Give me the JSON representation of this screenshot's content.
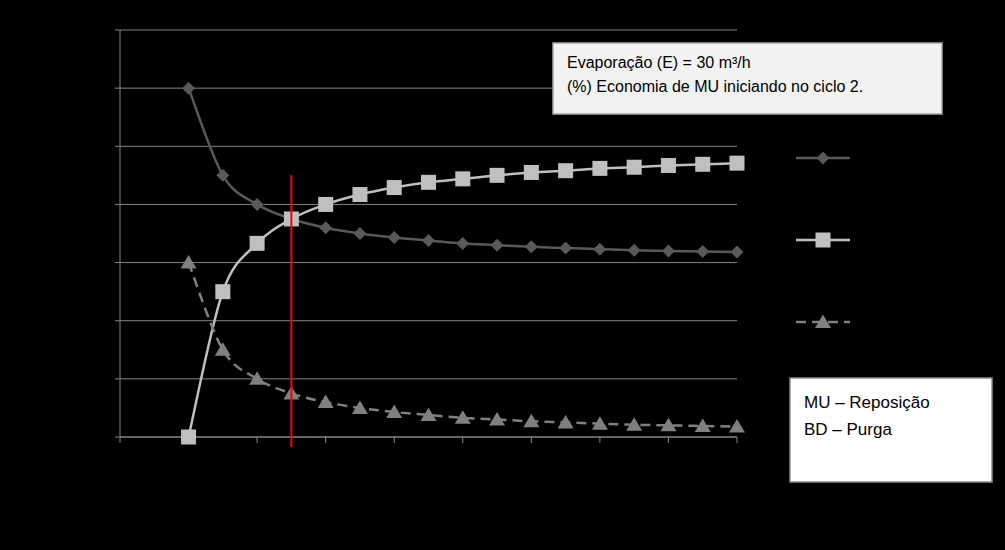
{
  "chart_data": {
    "type": "line",
    "x": [
      2,
      3,
      4,
      5,
      6,
      7,
      8,
      9,
      10,
      11,
      12,
      13,
      14,
      15,
      16,
      17,
      18
    ],
    "xlim": [
      0,
      18
    ],
    "xticks": [
      0,
      2,
      4,
      6,
      8,
      10,
      12,
      14,
      16,
      18
    ],
    "ylim": [
      0,
      70
    ],
    "yticks": [
      0,
      10,
      20,
      30,
      40,
      50,
      60,
      70
    ],
    "grid": true,
    "tick_labels": false,
    "legend": "right",
    "series": [
      {
        "color": "#595959",
        "marker": "diamond",
        "line_style": "solid",
        "values": [
          60,
          45,
          40,
          37.5,
          36,
          35,
          34.3,
          33.8,
          33.3,
          33,
          32.7,
          32.5,
          32.3,
          32.1,
          32,
          31.9,
          31.8
        ]
      },
      {
        "color": "#bfbfbf",
        "marker": "square",
        "line_style": "solid",
        "values": [
          0,
          25,
          33.3,
          37.5,
          40,
          41.7,
          42.9,
          43.8,
          44.4,
          45,
          45.5,
          45.8,
          46.2,
          46.4,
          46.7,
          46.9,
          47.1
        ]
      },
      {
        "color": "#808080",
        "marker": "triangle",
        "line_style": "dashed",
        "values": [
          30,
          15,
          10,
          7.5,
          6,
          5,
          4.3,
          3.8,
          3.3,
          3,
          2.7,
          2.5,
          2.3,
          2.1,
          2,
          1.9,
          1.8
        ]
      }
    ],
    "vlines": [
      {
        "x": 5,
        "ymax": 45,
        "color": "#ff0000"
      }
    ],
    "annotations": [
      {
        "lines": [
          "Evaporação (E) = 30 m³/h",
          "(%) Economia de MU iniciando no  ciclo 2."
        ]
      },
      {
        "lines": [
          "MU – Reposição",
          "BD – Purga"
        ]
      }
    ]
  }
}
